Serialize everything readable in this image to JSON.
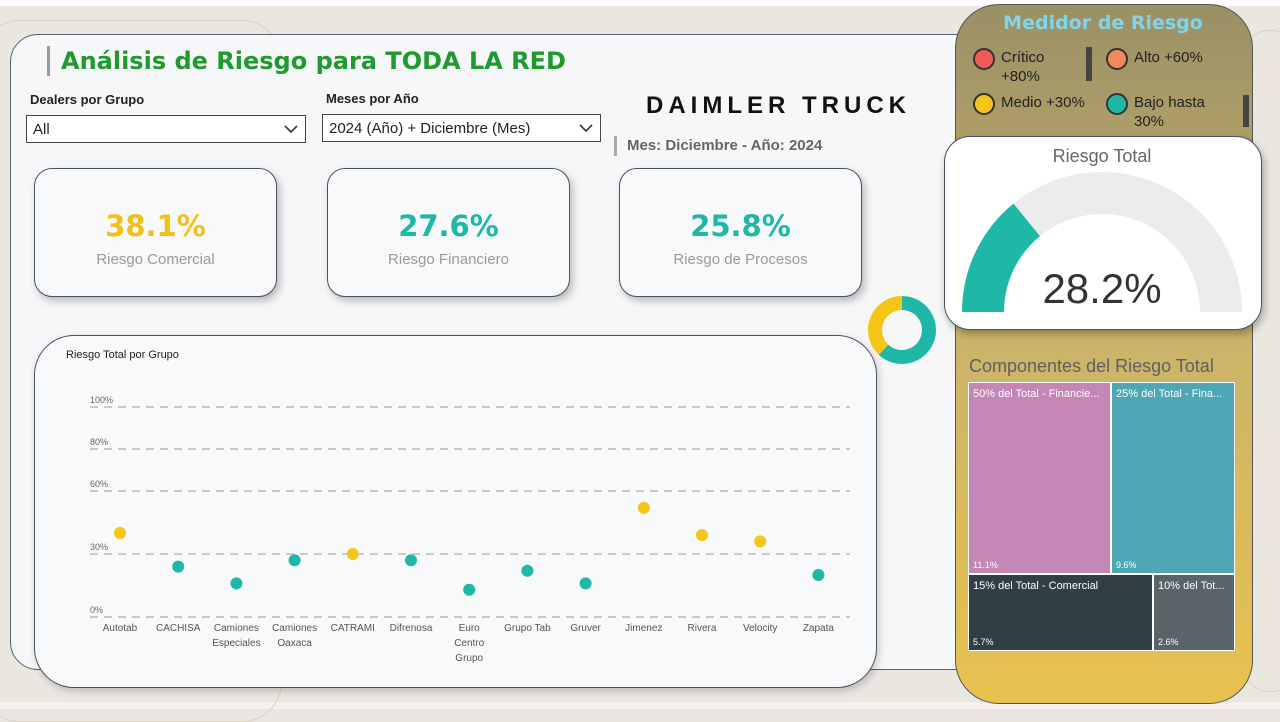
{
  "header": {
    "title": "Análisis de Riesgo para TODA LA RED",
    "brand": "DAIMLER TRUCK",
    "period": "Mes: Diciembre - Año: 2024"
  },
  "filters": {
    "dealers_label": "Dealers por Grupo",
    "dealers_value": "All",
    "months_label": "Meses por Año",
    "months_value": "2024 (Año) + Diciembre (Mes)"
  },
  "kpis": [
    {
      "value": "38.1%",
      "label": "Riesgo Comercial",
      "color": "#f2c018"
    },
    {
      "value": "27.6%",
      "label": "Riesgo Financiero",
      "color": "#1fb8a7"
    },
    {
      "value": "25.8%",
      "label": "Riesgo de Procesos",
      "color": "#1fb8a7"
    }
  ],
  "legend": {
    "title": "Medidor de Riesgo",
    "items": [
      {
        "label": "Crítico +80%",
        "color": "#f05a5a"
      },
      {
        "label": "Alto +60%",
        "color": "#f08a5a"
      },
      {
        "label": "Medio +30%",
        "color": "#f5c518"
      },
      {
        "label": "Bajo hasta 30%",
        "color": "#1fb8a7"
      }
    ]
  },
  "gauge": {
    "title": "Riesgo Total",
    "value_text": "28.2%",
    "value": 28.2,
    "max": 100,
    "fill_color": "#1fb8a7",
    "track_color": "#ececec"
  },
  "donut": {
    "segments": [
      {
        "value": 0.62,
        "color": "#1fb8a7"
      },
      {
        "value": 0.38,
        "color": "#f5c518"
      }
    ]
  },
  "treemap": {
    "title": "Componentes del Riesgo Total",
    "tiles": [
      {
        "header": "50% del Total - Financie...",
        "value": "11.1%",
        "color": "#c486b4"
      },
      {
        "header": "25% del Total - Fina...",
        "value": "9.6%",
        "color": "#4fa6b5"
      },
      {
        "header": "15% del Total - Comercial",
        "value": "5.7%",
        "color": "#2f3f45"
      },
      {
        "header": "10% del Tot...",
        "value": "2.6%",
        "color": "#5a6468"
      }
    ]
  },
  "chart_data": {
    "type": "scatter",
    "title": "Riesgo Total por Grupo",
    "categories": [
      "Autotab",
      "CACHISA",
      "Camiones Especiales",
      "Camiones Oaxaca",
      "CATRAMI",
      "Difrenosa",
      "Euro Centro Grupo",
      "Grupo Tab",
      "Gruver",
      "Jimenez",
      "Rivera",
      "Velocity",
      "Zapata"
    ],
    "category_lines": [
      [
        "Autotab"
      ],
      [
        "CACHISA"
      ],
      [
        "Camiones",
        "Especiales"
      ],
      [
        "Camiones",
        "Oaxaca"
      ],
      [
        "CATRAMI"
      ],
      [
        "Difrenosa"
      ],
      [
        "Euro",
        "Centro",
        "Grupo"
      ],
      [
        "Grupo Tab"
      ],
      [
        "Gruver"
      ],
      [
        "Jimenez"
      ],
      [
        "Rivera"
      ],
      [
        "Velocity"
      ],
      [
        "Zapata"
      ]
    ],
    "values": [
      40,
      24,
      16,
      27,
      30,
      27,
      13,
      22,
      16,
      52,
      39,
      36,
      20
    ],
    "colors": [
      "#f5c518",
      "#1fb8a7",
      "#1fb8a7",
      "#1fb8a7",
      "#f5c518",
      "#1fb8a7",
      "#1fb8a7",
      "#1fb8a7",
      "#1fb8a7",
      "#f5c518",
      "#f5c518",
      "#f5c518",
      "#1fb8a7"
    ],
    "yticks": [
      0,
      30,
      60,
      80,
      100
    ],
    "ytick_labels": [
      "0%",
      "30%",
      "60%",
      "80%",
      "100%"
    ],
    "ylim": [
      0,
      100
    ],
    "grid": true,
    "xlabel": "",
    "ylabel": ""
  }
}
